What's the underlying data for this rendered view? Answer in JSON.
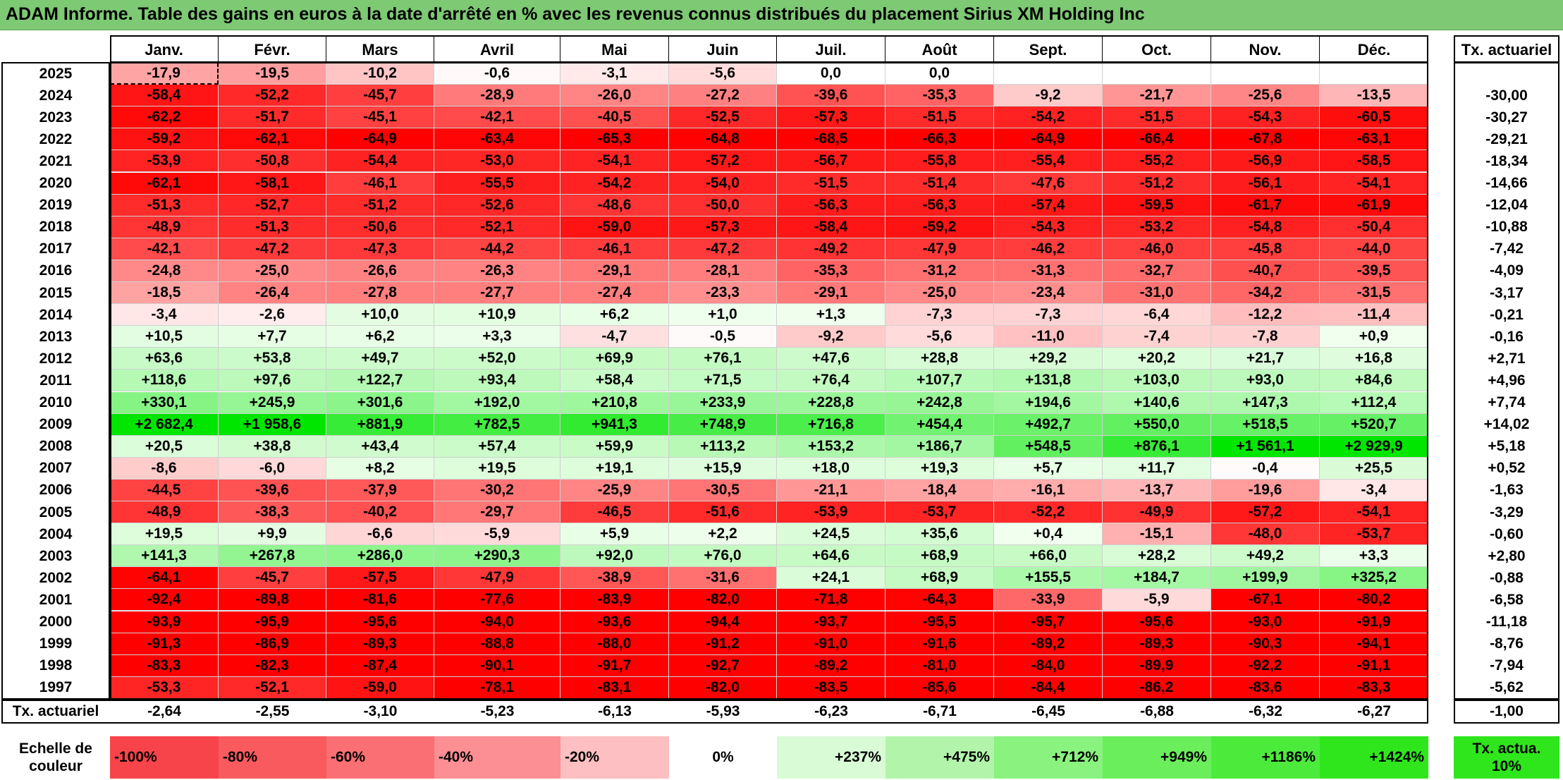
{
  "title": "ADAM Informe. Table des gains en euros à la date d'arrêté en % avec les revenus connus distribués du placement Sirius XM Holding Inc",
  "chart_data": {
    "type": "heatmap",
    "months": [
      "Janv.",
      "Févr.",
      "Mars",
      "Avril",
      "Mai",
      "Juin",
      "Juil.",
      "Août",
      "Sept.",
      "Oct.",
      "Nov.",
      "Déc."
    ],
    "annual_header": "Tx. actuariel",
    "rows": [
      {
        "year": "2025",
        "values": [
          "-17,9",
          "-19,5",
          "-10,2",
          "-0,6",
          "-3,1",
          "-5,6",
          "0,0",
          "0,0",
          "",
          "",
          "",
          ""
        ],
        "annual": ""
      },
      {
        "year": "2024",
        "values": [
          "-58,4",
          "-52,2",
          "-45,7",
          "-28,9",
          "-26,0",
          "-27,2",
          "-39,6",
          "-35,3",
          "-9,2",
          "-21,7",
          "-25,6",
          "-13,5"
        ],
        "annual": "-30,00"
      },
      {
        "year": "2023",
        "values": [
          "-62,2",
          "-51,7",
          "-45,1",
          "-42,1",
          "-40,5",
          "-52,5",
          "-57,3",
          "-51,5",
          "-54,2",
          "-51,5",
          "-54,3",
          "-60,5"
        ],
        "annual": "-30,27"
      },
      {
        "year": "2022",
        "values": [
          "-59,2",
          "-62,1",
          "-64,9",
          "-63,4",
          "-65,3",
          "-64,8",
          "-68,5",
          "-66,3",
          "-64,9",
          "-66,4",
          "-67,8",
          "-63,1"
        ],
        "annual": "-29,21"
      },
      {
        "year": "2021",
        "values": [
          "-53,9",
          "-50,8",
          "-54,4",
          "-53,0",
          "-54,1",
          "-57,2",
          "-56,7",
          "-55,8",
          "-55,4",
          "-55,2",
          "-56,9",
          "-58,5"
        ],
        "annual": "-18,34"
      },
      {
        "year": "2020",
        "values": [
          "-62,1",
          "-58,1",
          "-46,1",
          "-55,5",
          "-54,2",
          "-54,0",
          "-51,5",
          "-51,4",
          "-47,6",
          "-51,2",
          "-56,1",
          "-54,1"
        ],
        "annual": "-14,66"
      },
      {
        "year": "2019",
        "values": [
          "-51,3",
          "-52,7",
          "-51,2",
          "-52,6",
          "-48,6",
          "-50,0",
          "-56,3",
          "-56,3",
          "-57,4",
          "-59,5",
          "-61,7",
          "-61,9"
        ],
        "annual": "-12,04"
      },
      {
        "year": "2018",
        "values": [
          "-48,9",
          "-51,3",
          "-50,6",
          "-52,1",
          "-59,0",
          "-57,3",
          "-58,4",
          "-59,2",
          "-54,3",
          "-53,2",
          "-54,8",
          "-50,4"
        ],
        "annual": "-10,88"
      },
      {
        "year": "2017",
        "values": [
          "-42,1",
          "-47,2",
          "-47,3",
          "-44,2",
          "-46,1",
          "-47,2",
          "-49,2",
          "-47,9",
          "-46,2",
          "-46,0",
          "-45,8",
          "-44,0"
        ],
        "annual": "-7,42"
      },
      {
        "year": "2016",
        "values": [
          "-24,8",
          "-25,0",
          "-26,6",
          "-26,3",
          "-29,1",
          "-28,1",
          "-35,3",
          "-31,2",
          "-31,3",
          "-32,7",
          "-40,7",
          "-39,5"
        ],
        "annual": "-4,09"
      },
      {
        "year": "2015",
        "values": [
          "-18,5",
          "-26,4",
          "-27,8",
          "-27,7",
          "-27,4",
          "-23,3",
          "-29,1",
          "-25,0",
          "-23,4",
          "-31,0",
          "-34,2",
          "-31,5"
        ],
        "annual": "-3,17"
      },
      {
        "year": "2014",
        "values": [
          "-3,4",
          "-2,6",
          "+10,0",
          "+10,9",
          "+6,2",
          "+1,0",
          "+1,3",
          "-7,3",
          "-7,3",
          "-6,4",
          "-12,2",
          "-11,4"
        ],
        "annual": "-0,21"
      },
      {
        "year": "2013",
        "values": [
          "+10,5",
          "+7,7",
          "+6,2",
          "+3,3",
          "-4,7",
          "-0,5",
          "-9,2",
          "-5,6",
          "-11,0",
          "-7,4",
          "-7,8",
          "+0,9"
        ],
        "annual": "-0,16"
      },
      {
        "year": "2012",
        "values": [
          "+63,6",
          "+53,8",
          "+49,7",
          "+52,0",
          "+69,9",
          "+76,1",
          "+47,6",
          "+28,8",
          "+29,2",
          "+20,2",
          "+21,7",
          "+16,8"
        ],
        "annual": "+2,71"
      },
      {
        "year": "2011",
        "values": [
          "+118,6",
          "+97,6",
          "+122,7",
          "+93,4",
          "+58,4",
          "+71,5",
          "+76,4",
          "+107,7",
          "+131,8",
          "+103,0",
          "+93,0",
          "+84,6"
        ],
        "annual": "+4,96"
      },
      {
        "year": "2010",
        "values": [
          "+330,1",
          "+245,9",
          "+301,6",
          "+192,0",
          "+210,8",
          "+233,9",
          "+228,8",
          "+242,8",
          "+194,6",
          "+140,6",
          "+147,3",
          "+112,4"
        ],
        "annual": "+7,74"
      },
      {
        "year": "2009",
        "values": [
          "+2 682,4",
          "+1 958,6",
          "+881,9",
          "+782,5",
          "+941,3",
          "+748,9",
          "+716,8",
          "+454,4",
          "+492,7",
          "+550,0",
          "+518,5",
          "+520,7"
        ],
        "annual": "+14,02"
      },
      {
        "year": "2008",
        "values": [
          "+20,5",
          "+38,8",
          "+43,4",
          "+57,4",
          "+59,9",
          "+113,2",
          "+153,2",
          "+186,7",
          "+548,5",
          "+876,1",
          "+1 561,1",
          "+2 929,9"
        ],
        "annual": "+5,18"
      },
      {
        "year": "2007",
        "values": [
          "-8,6",
          "-6,0",
          "+8,2",
          "+19,5",
          "+19,1",
          "+15,9",
          "+18,0",
          "+19,3",
          "+5,7",
          "+11,7",
          "-0,4",
          "+25,5"
        ],
        "annual": "+0,52"
      },
      {
        "year": "2006",
        "values": [
          "-44,5",
          "-39,6",
          "-37,9",
          "-30,2",
          "-25,9",
          "-30,5",
          "-21,1",
          "-18,4",
          "-16,1",
          "-13,7",
          "-19,6",
          "-3,4"
        ],
        "annual": "-1,63"
      },
      {
        "year": "2005",
        "values": [
          "-48,9",
          "-38,3",
          "-40,2",
          "-29,7",
          "-46,5",
          "-51,6",
          "-53,9",
          "-53,7",
          "-52,2",
          "-49,9",
          "-57,2",
          "-54,1"
        ],
        "annual": "-3,29"
      },
      {
        "year": "2004",
        "values": [
          "+19,5",
          "+9,9",
          "-6,6",
          "-5,9",
          "+5,9",
          "+2,2",
          "+24,5",
          "+35,6",
          "+0,4",
          "-15,1",
          "-48,0",
          "-53,7"
        ],
        "annual": "-0,60"
      },
      {
        "year": "2003",
        "values": [
          "+141,3",
          "+267,8",
          "+286,0",
          "+290,3",
          "+92,0",
          "+76,0",
          "+64,6",
          "+68,9",
          "+66,0",
          "+28,2",
          "+49,2",
          "+3,3"
        ],
        "annual": "+2,80"
      },
      {
        "year": "2002",
        "values": [
          "-64,1",
          "-45,7",
          "-57,5",
          "-47,9",
          "-38,9",
          "-31,6",
          "+24,1",
          "+68,9",
          "+155,5",
          "+184,7",
          "+199,9",
          "+325,2"
        ],
        "annual": "-0,88"
      },
      {
        "year": "2001",
        "values": [
          "-92,4",
          "-89,8",
          "-81,6",
          "-77,6",
          "-83,9",
          "-82,0",
          "-71,8",
          "-64,3",
          "-33,9",
          "-5,9",
          "-67,1",
          "-80,2"
        ],
        "annual": "-6,58"
      },
      {
        "year": "2000",
        "values": [
          "-93,9",
          "-95,9",
          "-95,6",
          "-94,0",
          "-93,6",
          "-94,4",
          "-93,7",
          "-95,5",
          "-95,7",
          "-95,6",
          "-93,0",
          "-91,9"
        ],
        "annual": "-11,18"
      },
      {
        "year": "1999",
        "values": [
          "-91,3",
          "-86,9",
          "-89,3",
          "-88,8",
          "-88,0",
          "-91,2",
          "-91,0",
          "-91,6",
          "-89,2",
          "-89,3",
          "-90,3",
          "-94,1"
        ],
        "annual": "-8,76"
      },
      {
        "year": "1998",
        "values": [
          "-83,3",
          "-82,3",
          "-87,4",
          "-90,1",
          "-91,7",
          "-92,7",
          "-89,2",
          "-81,0",
          "-84,0",
          "-89,9",
          "-92,2",
          "-91,1"
        ],
        "annual": "-7,94"
      },
      {
        "year": "1997",
        "values": [
          "-53,3",
          "-52,1",
          "-59,0",
          "-78,1",
          "-83,1",
          "-82,0",
          "-83,5",
          "-85,6",
          "-84,4",
          "-86,2",
          "-83,6",
          "-83,3"
        ],
        "annual": "-5,62"
      }
    ],
    "footer": {
      "label": "Tx. actuariel",
      "values": [
        "-2,64",
        "-2,55",
        "-3,10",
        "-5,23",
        "-6,13",
        "-5,93",
        "-6,23",
        "-6,71",
        "-6,45",
        "-6,88",
        "-6,32",
        "-6,27"
      ],
      "annual": "-1,00"
    },
    "color_scale": {
      "label": "Echelle de couleur",
      "steps": [
        {
          "label": "-100%",
          "color": "#f7444a"
        },
        {
          "label": "-80%",
          "color": "#f85a5e"
        },
        {
          "label": "-60%",
          "color": "#fa6f73"
        },
        {
          "label": "-40%",
          "color": "#fb8f93"
        },
        {
          "label": "-20%",
          "color": "#fdbfc1"
        },
        {
          "label": "0%",
          "color": "#ffffff"
        },
        {
          "label": "+237%",
          "color": "#d9fbd6"
        },
        {
          "label": "+475%",
          "color": "#b2f5aa"
        },
        {
          "label": "+712%",
          "color": "#8af27e"
        },
        {
          "label": "+949%",
          "color": "#6aee5c"
        },
        {
          "label": "+1186%",
          "color": "#4ceb3b"
        },
        {
          "label": "+1424%",
          "color": "#2fe61d"
        }
      ],
      "annual_label": "Tx. actua. 10%",
      "annual_color": "#2fe61d"
    }
  }
}
